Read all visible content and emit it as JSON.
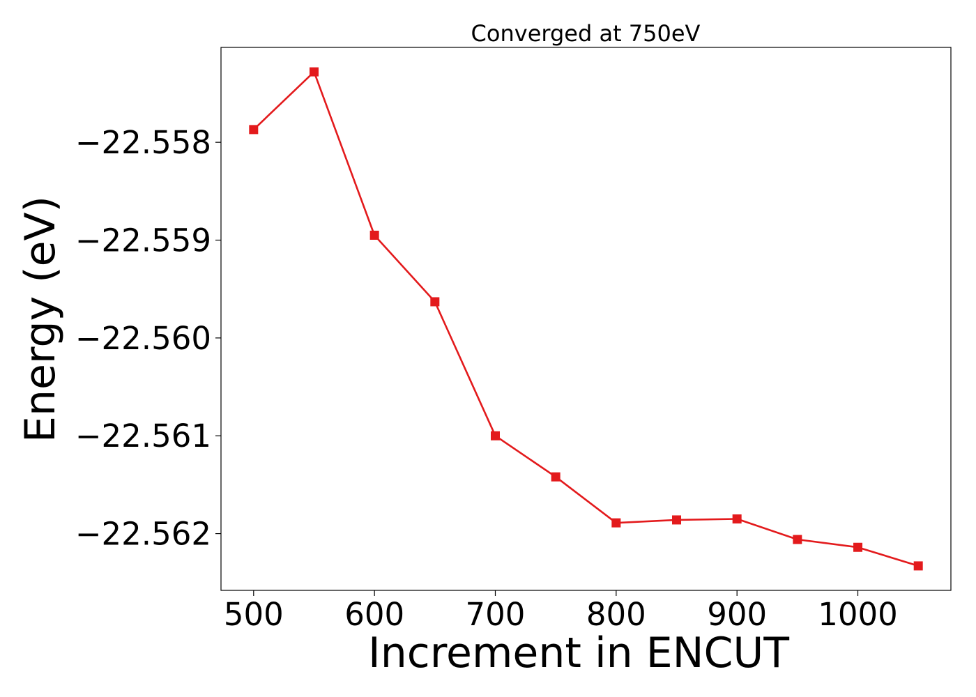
{
  "chart_data": {
    "type": "line",
    "title": "Converged at 750eV",
    "xlabel": "Increment in ENCUT",
    "ylabel": "Energy (eV)",
    "x": [
      500,
      550,
      600,
      650,
      700,
      750,
      800,
      850,
      900,
      950,
      1000,
      1050
    ],
    "series": [
      {
        "name": "",
        "color": "#e31a1c",
        "marker": "square",
        "values": [
          -22.55787,
          -22.55728,
          -22.55895,
          -22.55963,
          -22.561,
          -22.56142,
          -22.56189,
          -22.56186,
          -22.56185,
          -22.56206,
          -22.56214,
          -22.56233
        ]
      }
    ],
    "xlim": [
      473,
      1077
    ],
    "ylim": [
      -22.56258,
      -22.55703
    ],
    "xticks": [
      500,
      600,
      700,
      800,
      900,
      1000
    ],
    "xtick_labels": [
      "500",
      "600",
      "700",
      "800",
      "900",
      "1000"
    ],
    "yticks": [
      -22.558,
      -22.559,
      -22.56,
      -22.561,
      -22.562
    ],
    "ytick_labels": [
      "−22.558",
      "−22.559",
      "−22.560",
      "−22.561",
      "−22.562"
    ],
    "grid": false,
    "legend": false
  }
}
